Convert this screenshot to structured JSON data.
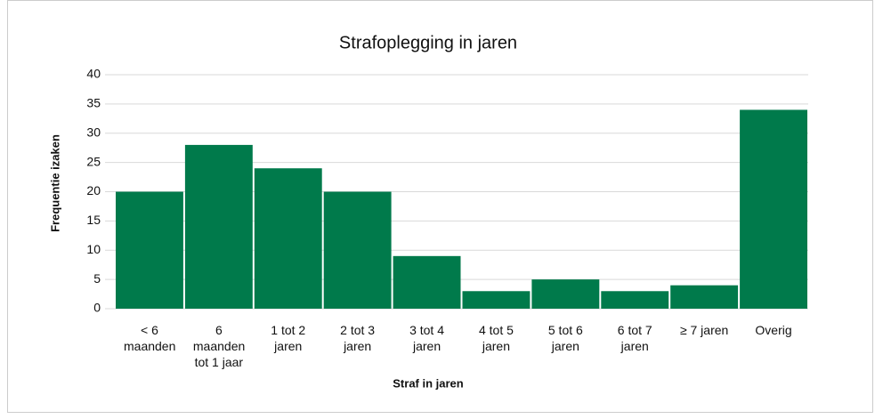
{
  "chart_data": {
    "type": "bar",
    "title": "Strafoplegging in jaren",
    "x_label": "Straf in jaren",
    "y_label": "Frequentie izaken",
    "categories": [
      "< 6 maanden",
      "6 maanden tot 1 jaar",
      "1 tot 2 jaren",
      "2 tot 3 jaren",
      "3 tot 4 jaren",
      "4 tot 5 jaren",
      "5 tot 6 jaren",
      "6 tot 7 jaren",
      "≥ 7 jaren",
      "Overig"
    ],
    "values": [
      20,
      28,
      24,
      20,
      9,
      3,
      5,
      3,
      4,
      34
    ],
    "color": "#007a4b",
    "ylim": [
      0,
      40
    ],
    "yticks": [
      0,
      5,
      10,
      15,
      20,
      25,
      30,
      35,
      40
    ],
    "grid": true
  }
}
